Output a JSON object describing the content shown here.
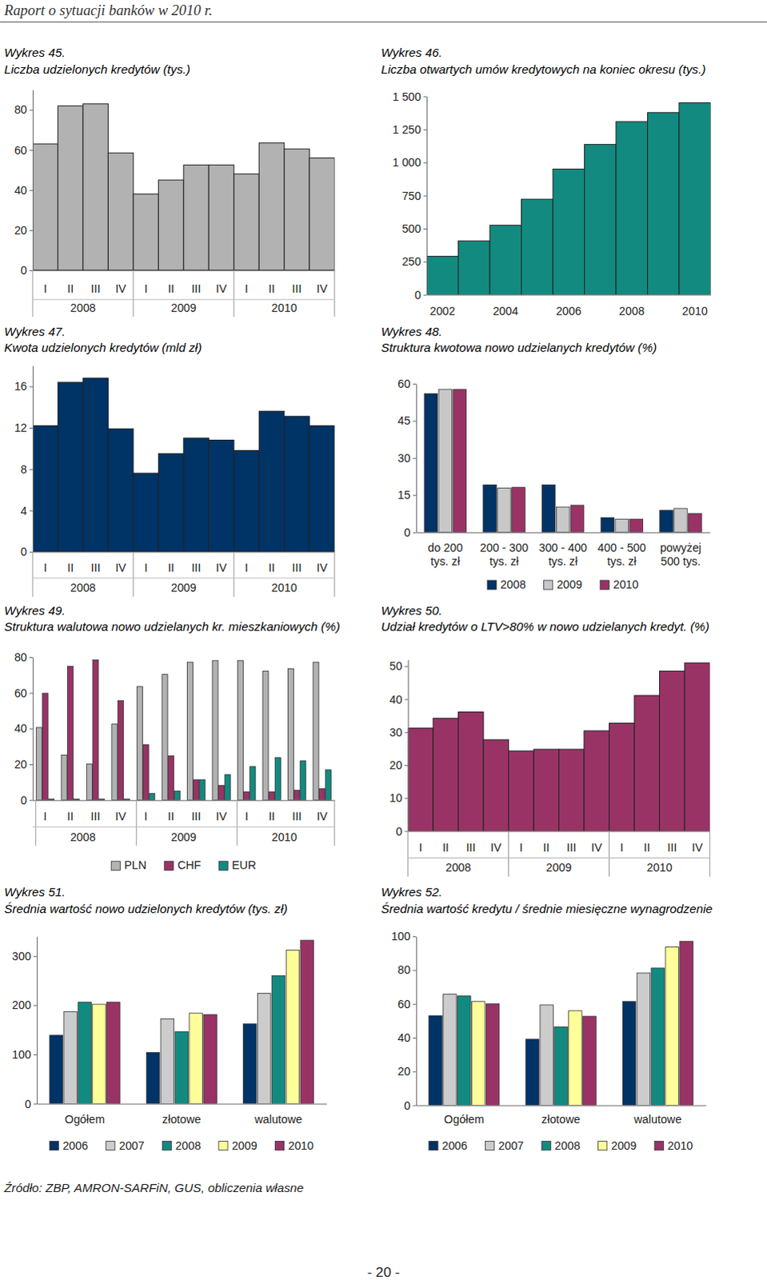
{
  "header": "Raport o sytuacji banków w 2010 r.",
  "chart_data": [
    {
      "type": "bar",
      "title": "Wykres 45.",
      "subtitle": "Liczba udzielonych kredytów (tys.)",
      "categories": [
        "I",
        "II",
        "III",
        "IV",
        "I",
        "II",
        "III",
        "IV",
        "I",
        "II",
        "III",
        "IV"
      ],
      "x_groups": [
        "2008",
        "2009",
        "2010"
      ],
      "values": [
        63,
        82,
        83,
        58.5,
        38,
        45,
        52.5,
        52.5,
        48,
        63.5,
        60.5,
        56
      ],
      "color": "#b2b2b2",
      "ylim": [
        0,
        90
      ],
      "yticks": [
        0,
        20,
        40,
        60,
        80
      ]
    },
    {
      "type": "bar",
      "title": "Wykres 46.",
      "subtitle": "Liczba otwartych umów kredytowych na koniec okresu (tys.)",
      "categories": [
        "2002",
        null,
        "2004",
        null,
        "2006",
        null,
        "2008",
        null,
        "2010"
      ],
      "values": [
        290,
        407,
        525,
        722,
        950,
        1136,
        1309,
        1377,
        1451
      ],
      "color": "#138a80",
      "ylim": [
        0,
        1500
      ],
      "yticks": [
        0,
        250,
        500,
        750,
        {
          "value": 1000,
          "label": "1 000"
        },
        {
          "value": 1250,
          "label": "1 250"
        },
        {
          "value": 1500,
          "label": "1 500"
        }
      ]
    },
    {
      "type": "bar",
      "title": "Wykres 47.",
      "subtitle": "Kwota udzielonych kredytów (mld zł)",
      "categories": [
        "I",
        "II",
        "III",
        "IV",
        "I",
        "II",
        "III",
        "IV",
        "I",
        "II",
        "III",
        "IV"
      ],
      "x_groups": [
        "2008",
        "2009",
        "2010"
      ],
      "values": [
        12.2,
        16.4,
        16.8,
        11.9,
        7.6,
        9.5,
        11,
        10.8,
        9.8,
        13.6,
        13.1,
        12.2
      ],
      "color": "#003366",
      "ylim": [
        0,
        18
      ],
      "yticks": [
        0,
        4,
        8,
        12,
        16
      ]
    },
    {
      "type": "bar",
      "title": "Wykres 48.",
      "subtitle": "Struktura kwotowa nowo udzielanych kredytów (%)",
      "categories": [
        "do 200\ntys. zł",
        "200 - 300\ntys. zł",
        "300 - 400\ntys. zł",
        "400 - 500\ntys. zł",
        "powyżej\n500 tys."
      ],
      "series": [
        {
          "name": "2008",
          "color": "#003366",
          "values": [
            56,
            19.1,
            19.1,
            5.9,
            8.9
          ]
        },
        {
          "name": "2009",
          "color": "#c8c8c8",
          "values": [
            57.7,
            17.8,
            10.2,
            5.3,
            9.6
          ]
        },
        {
          "name": "2010",
          "color": "#993366",
          "values": [
            57.7,
            18.1,
            10.9,
            5.3,
            7.6
          ]
        }
      ],
      "ylim": [
        0,
        60
      ],
      "yticks": [
        0,
        15,
        30,
        45,
        60
      ],
      "legend": "bottom"
    },
    {
      "type": "bar",
      "title": "Wykres 49.",
      "subtitle": "Struktura walutowa nowo udzielanych kr. mieszkaniowych (%)",
      "categories": [
        "I",
        "II",
        "III",
        "IV",
        "I",
        "II",
        "III",
        "IV",
        "I",
        "II",
        "III",
        "IV"
      ],
      "x_groups": [
        "2008",
        "2009",
        "2010"
      ],
      "series": [
        {
          "name": "PLN",
          "color": "#b2b2b2",
          "values": [
            40.6,
            25.1,
            20.1,
            42.5,
            63.5,
            70.3,
            77.2,
            78.1,
            78.1,
            72.1,
            73.5,
            77.2
          ]
        },
        {
          "name": "CHF",
          "color": "#993366",
          "values": [
            59.8,
            74.9,
            78.5,
            55.7,
            31,
            24.7,
            11.4,
            8.2,
            4.6,
            4.6,
            5.5,
            6.4
          ]
        },
        {
          "name": "EUR",
          "color": "#138a80",
          "values": [
            0.5,
            0.5,
            0.5,
            0.5,
            3.7,
            5,
            11.4,
            14.2,
            18.7,
            23.7,
            21.9,
            16.9
          ]
        }
      ],
      "ylim": [
        0,
        80
      ],
      "yticks": [
        0,
        20,
        40,
        60,
        80
      ],
      "legend": "bottom"
    },
    {
      "type": "bar",
      "title": "Wykres 50.",
      "subtitle": "Udział kredytów o LTV>80% w nowo udzielanych kredyt. (%)",
      "categories": [
        "I",
        "II",
        "III",
        "IV",
        "I",
        "II",
        "III",
        "IV",
        "I",
        "II",
        "III",
        "IV"
      ],
      "x_groups": [
        "2008",
        "2009",
        "2010"
      ],
      "values": [
        31.2,
        34.2,
        36.1,
        27.7,
        24.3,
        24.8,
        24.8,
        30.4,
        32.7,
        41.1,
        48.5,
        51
      ],
      "color": "#993366",
      "ylim": [
        0,
        52
      ],
      "yticks": [
        0,
        10,
        20,
        30,
        40,
        50
      ]
    },
    {
      "type": "bar",
      "title": "Wykres 51.",
      "subtitle": "Średnia wartość nowo udzielonych kredytów (tys. zł)",
      "categories": [
        "Ogółem",
        "złotowe",
        "walutowe"
      ],
      "series": [
        {
          "name": "2006",
          "color": "#003366",
          "values": [
            139,
            104,
            162
          ]
        },
        {
          "name": "2007",
          "color": "#cccccc",
          "values": [
            187,
            172,
            224
          ]
        },
        {
          "name": "2008",
          "color": "#138a80",
          "values": [
            206,
            146,
            260
          ]
        },
        {
          "name": "2009",
          "color": "#ffff99",
          "values": [
            202,
            184,
            312
          ]
        },
        {
          "name": "2010",
          "color": "#993366",
          "values": [
            206,
            181,
            332
          ]
        }
      ],
      "ylim": [
        0,
        340
      ],
      "yticks": [
        0,
        100,
        200,
        300
      ],
      "legend": "bottom"
    },
    {
      "type": "bar",
      "title": "Wykres 52.",
      "subtitle": "Średnia wartość kredytu / średnie miesięczne wynagrodzenie",
      "categories": [
        "Ogółem",
        "złotowe",
        "walutowe"
      ],
      "series": [
        {
          "name": "2006",
          "color": "#003366",
          "values": [
            53,
            39.1,
            61.4
          ]
        },
        {
          "name": "2007",
          "color": "#cccccc",
          "values": [
            65.7,
            59.4,
            78.3
          ]
        },
        {
          "name": "2008",
          "color": "#138a80",
          "values": [
            64.7,
            46.4,
            81.2
          ]
        },
        {
          "name": "2009",
          "color": "#ffff99",
          "values": [
            61.4,
            56,
            93.7
          ]
        },
        {
          "name": "2010",
          "color": "#993366",
          "values": [
            60,
            52.7,
            97.1
          ]
        }
      ],
      "ylim": [
        0,
        100
      ],
      "yticks": [
        0,
        20,
        40,
        60,
        80,
        100
      ],
      "legend": "bottom"
    }
  ],
  "source": "Źródło: ZBP, AMRON-SARFiN, GUS, obliczenia własne",
  "page_number": "- 20 -"
}
